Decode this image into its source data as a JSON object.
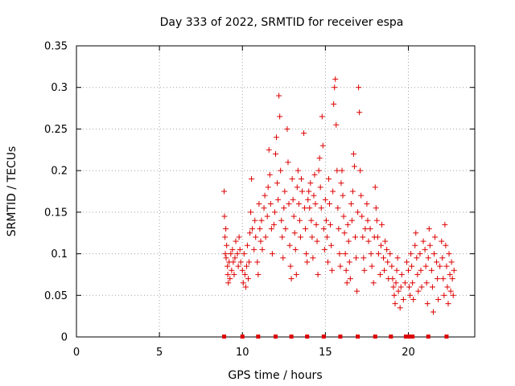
{
  "chart_data": {
    "type": "scatter",
    "title": "Day 333 of 2022, SRMTID for receiver espa",
    "xlabel": "GPS time / hours",
    "ylabel": "SRMTID / TECUs",
    "xlim": [
      0,
      24
    ],
    "ylim": [
      0,
      0.35
    ],
    "xticks": [
      0,
      5,
      10,
      15,
      20
    ],
    "xtick_labels": [
      "0",
      "5",
      "10",
      "15",
      "20"
    ],
    "yticks": [
      0,
      0.05,
      0.1,
      0.15,
      0.2,
      0.25,
      0.3,
      0.35
    ],
    "ytick_labels": [
      "0",
      "0.05",
      "0.1",
      "0.15",
      "0.2",
      "0.25",
      "0.3",
      "0.35"
    ],
    "grid": true,
    "marker": "+",
    "color": "#dd0000",
    "series": [
      {
        "name": "SRMTID",
        "points": [
          [
            8.9,
            0.175
          ],
          [
            8.92,
            0.145
          ],
          [
            8.95,
            0.12
          ],
          [
            8.97,
            0.1
          ],
          [
            9.0,
            0.13
          ],
          [
            9.02,
            0.095
          ],
          [
            9.05,
            0.11
          ],
          [
            9.1,
            0.085
          ],
          [
            9.12,
            0.075
          ],
          [
            9.15,
            0.065
          ],
          [
            9.2,
            0.09
          ],
          [
            9.25,
            0.07
          ],
          [
            9.3,
            0.1
          ],
          [
            9.35,
            0.08
          ],
          [
            9.4,
            0.105
          ],
          [
            9.45,
            0.09
          ],
          [
            9.5,
            0.075
          ],
          [
            9.55,
            0.095
          ],
          [
            9.6,
            0.115
          ],
          [
            9.7,
            0.1
          ],
          [
            9.75,
            0.085
          ],
          [
            9.8,
            0.12
          ],
          [
            9.85,
            0.105
          ],
          [
            9.9,
            0.09
          ],
          [
            10.0,
            0.08
          ],
          [
            10.05,
            0.065
          ],
          [
            10.1,
            0.1
          ],
          [
            10.15,
            0.075
          ],
          [
            10.2,
            0.06
          ],
          [
            10.25,
            0.085
          ],
          [
            10.3,
            0.11
          ],
          [
            10.35,
            0.07
          ],
          [
            10.4,
            0.09
          ],
          [
            10.45,
            0.125
          ],
          [
            10.5,
            0.15
          ],
          [
            10.55,
            0.19
          ],
          [
            10.6,
            0.13
          ],
          [
            10.7,
            0.105
          ],
          [
            10.75,
            0.14
          ],
          [
            10.8,
            0.12
          ],
          [
            10.9,
            0.09
          ],
          [
            10.95,
            0.075
          ],
          [
            11.0,
            0.16
          ],
          [
            11.05,
            0.13
          ],
          [
            11.1,
            0.115
          ],
          [
            11.15,
            0.14
          ],
          [
            11.2,
            0.105
          ],
          [
            11.3,
            0.155
          ],
          [
            11.35,
            0.17
          ],
          [
            11.4,
            0.12
          ],
          [
            11.5,
            0.145
          ],
          [
            11.55,
            0.18
          ],
          [
            11.6,
            0.225
          ],
          [
            11.65,
            0.195
          ],
          [
            11.7,
            0.16
          ],
          [
            11.75,
            0.13
          ],
          [
            11.8,
            0.1
          ],
          [
            11.9,
            0.135
          ],
          [
            11.95,
            0.15
          ],
          [
            12.0,
            0.22
          ],
          [
            12.05,
            0.24
          ],
          [
            12.1,
            0.185
          ],
          [
            12.15,
            0.165
          ],
          [
            12.2,
            0.29
          ],
          [
            12.25,
            0.265
          ],
          [
            12.3,
            0.2
          ],
          [
            12.35,
            0.14
          ],
          [
            12.4,
            0.12
          ],
          [
            12.45,
            0.095
          ],
          [
            12.5,
            0.155
          ],
          [
            12.55,
            0.175
          ],
          [
            12.6,
            0.13
          ],
          [
            12.7,
            0.25
          ],
          [
            12.75,
            0.21
          ],
          [
            12.8,
            0.16
          ],
          [
            12.85,
            0.11
          ],
          [
            12.9,
            0.085
          ],
          [
            12.95,
            0.07
          ],
          [
            13.0,
            0.19
          ],
          [
            13.05,
            0.165
          ],
          [
            13.1,
            0.145
          ],
          [
            13.15,
            0.125
          ],
          [
            13.2,
            0.105
          ],
          [
            13.25,
            0.075
          ],
          [
            13.3,
            0.18
          ],
          [
            13.35,
            0.2
          ],
          [
            13.4,
            0.16
          ],
          [
            13.45,
            0.14
          ],
          [
            13.5,
            0.12
          ],
          [
            13.55,
            0.19
          ],
          [
            13.6,
            0.175
          ],
          [
            13.7,
            0.245
          ],
          [
            13.75,
            0.155
          ],
          [
            13.8,
            0.13
          ],
          [
            13.85,
            0.1
          ],
          [
            13.9,
            0.09
          ],
          [
            13.95,
            0.165
          ],
          [
            14.0,
            0.175
          ],
          [
            14.05,
            0.155
          ],
          [
            14.1,
            0.185
          ],
          [
            14.15,
            0.14
          ],
          [
            14.2,
            0.12
          ],
          [
            14.25,
            0.095
          ],
          [
            14.3,
            0.17
          ],
          [
            14.35,
            0.195
          ],
          [
            14.4,
            0.16
          ],
          [
            14.45,
            0.135
          ],
          [
            14.5,
            0.115
          ],
          [
            14.55,
            0.075
          ],
          [
            14.6,
            0.2
          ],
          [
            14.65,
            0.215
          ],
          [
            14.7,
            0.18
          ],
          [
            14.75,
            0.155
          ],
          [
            14.8,
            0.265
          ],
          [
            14.85,
            0.23
          ],
          [
            14.9,
            0.13
          ],
          [
            14.95,
            0.105
          ],
          [
            15.0,
            0.165
          ],
          [
            15.05,
            0.14
          ],
          [
            15.1,
            0.12
          ],
          [
            15.15,
            0.09
          ],
          [
            15.2,
            0.19
          ],
          [
            15.25,
            0.16
          ],
          [
            15.3,
            0.135
          ],
          [
            15.35,
            0.11
          ],
          [
            15.4,
            0.08
          ],
          [
            15.45,
            0.175
          ],
          [
            15.5,
            0.28
          ],
          [
            15.55,
            0.3
          ],
          [
            15.6,
            0.31
          ],
          [
            15.65,
            0.255
          ],
          [
            15.7,
            0.2
          ],
          [
            15.75,
            0.155
          ],
          [
            15.8,
            0.13
          ],
          [
            15.85,
            0.1
          ],
          [
            15.9,
            0.085
          ],
          [
            15.95,
            0.185
          ],
          [
            16.0,
            0.2
          ],
          [
            16.05,
            0.17
          ],
          [
            16.1,
            0.145
          ],
          [
            16.15,
            0.125
          ],
          [
            16.2,
            0.1
          ],
          [
            16.25,
            0.08
          ],
          [
            16.3,
            0.065
          ],
          [
            16.35,
            0.135
          ],
          [
            16.4,
            0.115
          ],
          [
            16.45,
            0.09
          ],
          [
            16.5,
            0.07
          ],
          [
            16.55,
            0.16
          ],
          [
            16.6,
            0.14
          ],
          [
            16.65,
            0.175
          ],
          [
            16.7,
            0.22
          ],
          [
            16.75,
            0.205
          ],
          [
            16.8,
            0.12
          ],
          [
            16.85,
            0.095
          ],
          [
            16.9,
            0.055
          ],
          [
            16.95,
            0.15
          ],
          [
            17.0,
            0.3
          ],
          [
            17.05,
            0.27
          ],
          [
            17.1,
            0.2
          ],
          [
            17.15,
            0.17
          ],
          [
            17.2,
            0.145
          ],
          [
            17.25,
            0.12
          ],
          [
            17.3,
            0.095
          ],
          [
            17.35,
            0.08
          ],
          [
            17.4,
            0.13
          ],
          [
            17.5,
            0.16
          ],
          [
            17.55,
            0.14
          ],
          [
            17.6,
            0.115
          ],
          [
            17.7,
            0.13
          ],
          [
            17.75,
            0.1
          ],
          [
            17.8,
            0.085
          ],
          [
            17.9,
            0.065
          ],
          [
            17.95,
            0.12
          ],
          [
            18.0,
            0.18
          ],
          [
            18.05,
            0.155
          ],
          [
            18.1,
            0.14
          ],
          [
            18.15,
            0.12
          ],
          [
            18.2,
            0.1
          ],
          [
            18.3,
            0.075
          ],
          [
            18.35,
            0.11
          ],
          [
            18.4,
            0.135
          ],
          [
            18.5,
            0.095
          ],
          [
            18.55,
            0.08
          ],
          [
            18.6,
            0.115
          ],
          [
            18.7,
            0.105
          ],
          [
            18.75,
            0.09
          ],
          [
            18.8,
            0.07
          ],
          [
            18.9,
            0.1
          ],
          [
            19.0,
            0.085
          ],
          [
            19.05,
            0.07
          ],
          [
            19.1,
            0.06
          ],
          [
            19.15,
            0.05
          ],
          [
            19.2,
            0.04
          ],
          [
            19.25,
            0.065
          ],
          [
            19.3,
            0.08
          ],
          [
            19.35,
            0.095
          ],
          [
            19.4,
            0.055
          ],
          [
            19.5,
            0.035
          ],
          [
            19.55,
            0.06
          ],
          [
            19.6,
            0.075
          ],
          [
            19.7,
            0.045
          ],
          [
            19.8,
            0.065
          ],
          [
            19.9,
            0.09
          ],
          [
            20.0,
            0.08
          ],
          [
            20.05,
            0.06
          ],
          [
            20.1,
            0.05
          ],
          [
            20.15,
            0.1
          ],
          [
            20.2,
            0.085
          ],
          [
            20.25,
            0.065
          ],
          [
            20.3,
            0.045
          ],
          [
            20.4,
            0.11
          ],
          [
            20.45,
            0.125
          ],
          [
            20.5,
            0.095
          ],
          [
            20.55,
            0.075
          ],
          [
            20.6,
            0.055
          ],
          [
            20.7,
            0.1
          ],
          [
            20.75,
            0.08
          ],
          [
            20.8,
            0.06
          ],
          [
            20.9,
            0.115
          ],
          [
            21.0,
            0.105
          ],
          [
            21.05,
            0.085
          ],
          [
            21.1,
            0.065
          ],
          [
            21.15,
            0.04
          ],
          [
            21.2,
            0.095
          ],
          [
            21.25,
            0.13
          ],
          [
            21.3,
            0.11
          ],
          [
            21.4,
            0.08
          ],
          [
            21.45,
            0.06
          ],
          [
            21.5,
            0.03
          ],
          [
            21.55,
            0.1
          ],
          [
            21.6,
            0.12
          ],
          [
            21.7,
            0.09
          ],
          [
            21.75,
            0.07
          ],
          [
            21.8,
            0.045
          ],
          [
            21.9,
            0.085
          ],
          [
            22.0,
            0.115
          ],
          [
            22.05,
            0.095
          ],
          [
            22.1,
            0.07
          ],
          [
            22.15,
            0.05
          ],
          [
            22.2,
            0.135
          ],
          [
            22.25,
            0.11
          ],
          [
            22.3,
            0.085
          ],
          [
            22.35,
            0.06
          ],
          [
            22.4,
            0.04
          ],
          [
            22.45,
            0.1
          ],
          [
            22.5,
            0.075
          ],
          [
            22.55,
            0.055
          ],
          [
            22.6,
            0.09
          ],
          [
            22.65,
            0.07
          ],
          [
            22.7,
            0.05
          ],
          [
            22.75,
            0.08
          ]
        ]
      }
    ],
    "baseline_markers_x": [
      8.9,
      10.0,
      10.95,
      12.0,
      12.95,
      13.9,
      14.9,
      15.9,
      16.95,
      18.0,
      18.95,
      19.85,
      20.05,
      20.25,
      21.2,
      22.3
    ]
  }
}
